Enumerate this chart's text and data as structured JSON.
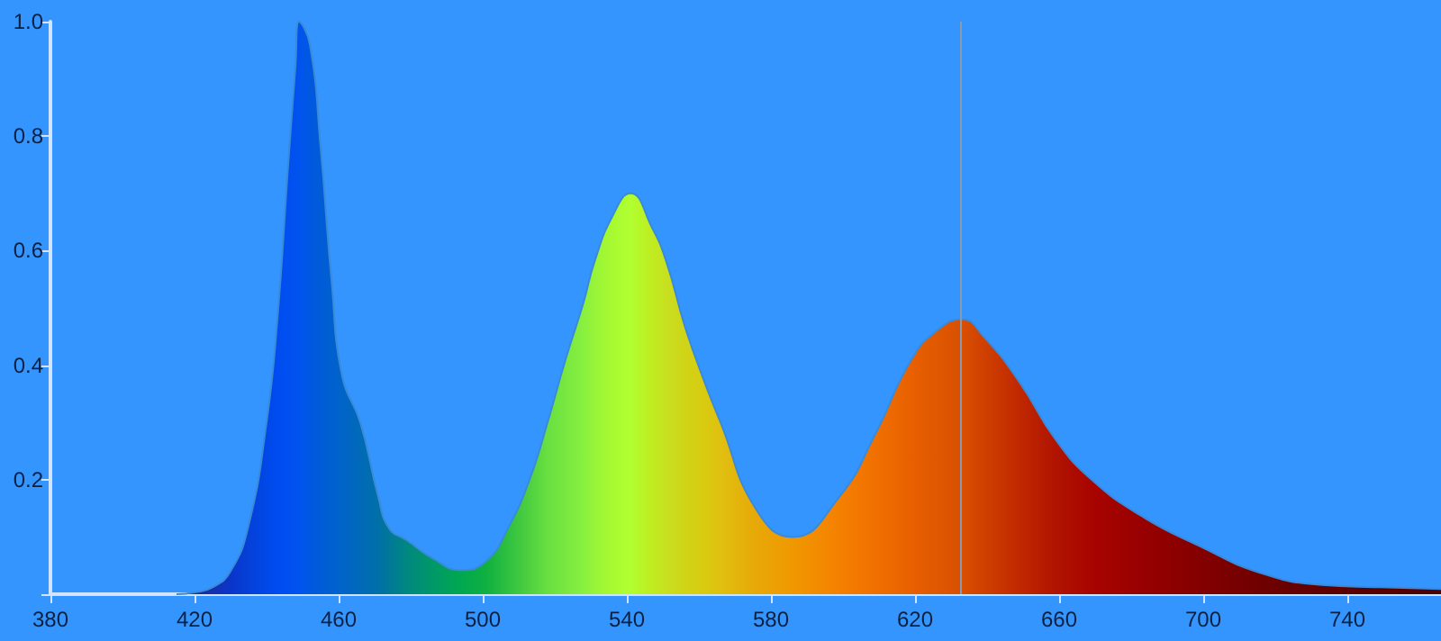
{
  "chart_data": {
    "type": "area",
    "x": [
      415,
      420,
      425,
      430,
      435,
      440,
      443,
      446,
      448,
      449,
      452,
      455,
      458,
      461,
      466,
      471,
      474,
      479,
      486,
      494,
      501,
      507,
      513,
      518,
      523,
      528,
      531,
      536,
      541,
      547,
      551,
      556,
      561,
      566,
      576,
      586,
      599,
      609,
      619,
      626,
      633,
      639,
      649,
      659,
      669,
      683,
      699,
      716,
      733,
      749,
      766
    ],
    "values": [
      0,
      0.003,
      0.012,
      0.04,
      0.12,
      0.3,
      0.48,
      0.75,
      0.92,
      1.0,
      0.96,
      0.78,
      0.55,
      0.38,
      0.3,
      0.17,
      0.115,
      0.094,
      0.063,
      0.042,
      0.058,
      0.115,
      0.2,
      0.3,
      0.41,
      0.51,
      0.58,
      0.66,
      0.7,
      0.64,
      0.58,
      0.47,
      0.38,
      0.3,
      0.147,
      0.1,
      0.17,
      0.28,
      0.41,
      0.46,
      0.48,
      0.45,
      0.37,
      0.27,
      0.2,
      0.136,
      0.084,
      0.037,
      0.016,
      0.012,
      0.009
    ],
    "colors": [
      "#1a2080",
      "#1a2a9a",
      "#1530b0",
      "#0a35c8",
      "#0540d8",
      "#0048e8",
      "#004cf0",
      "#0050f0",
      "#0052f0",
      "#0054ee",
      "#0058e0",
      "#005cd8",
      "#0060d0",
      "#0064c8",
      "#006ab8",
      "#0070a8",
      "#007898",
      "#008880",
      "#009868",
      "#00a850",
      "#10b040",
      "#30c040",
      "#50d040",
      "#68e040",
      "#78e840",
      "#88f040",
      "#98f438",
      "#a8fa30",
      "#b0ff30",
      "#c0ec20",
      "#c8e020",
      "#d0d418",
      "#d8cc10",
      "#e0c010",
      "#e8a808",
      "#f09800",
      "#f58000",
      "#f07000",
      "#e86000",
      "#e05800",
      "#d85000",
      "#d04000",
      "#c02800",
      "#b01400",
      "#a80400",
      "#980000",
      "#840000",
      "#700000",
      "#600000",
      "#580000",
      "#500000"
    ],
    "xlim": [
      380,
      766
    ],
    "xticks": [
      380,
      420,
      460,
      500,
      540,
      580,
      620,
      660,
      700,
      740
    ],
    "ylim": [
      0,
      1.0
    ],
    "yticks": [
      {
        "value": 0,
        "label": null
      },
      0.2,
      0.4,
      0.6,
      0.8,
      {
        "value": 1.0,
        "label": "1.0"
      }
    ],
    "ref_lines": [
      {
        "axis": "x",
        "value": 632.5,
        "color": "#8a9ab0"
      }
    ],
    "tick_labels": "xy"
  }
}
